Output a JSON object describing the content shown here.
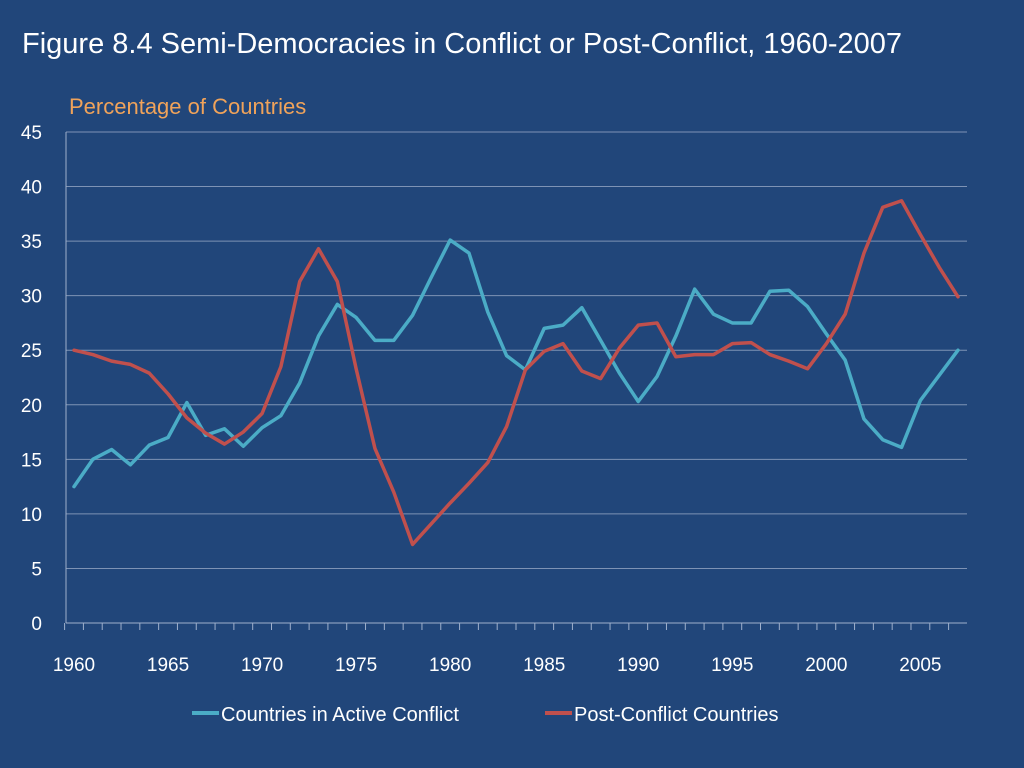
{
  "slide": {
    "title": "Figure 8.4 Semi-Democracies in Conflict or Post-Conflict, 1960-2007"
  },
  "chart_data": {
    "type": "line",
    "title": "Figure 8.4 Semi-Democracies in Conflict or Post-Conflict, 1960-2007",
    "xlabel": "",
    "ylabel": "Percentage of Countries",
    "xlim": [
      1960,
      2007
    ],
    "ylim": [
      0,
      45
    ],
    "y_ticks": [
      0,
      5,
      10,
      15,
      20,
      25,
      30,
      35,
      40,
      45
    ],
    "x_ticks": [
      1960,
      1965,
      1970,
      1975,
      1980,
      1985,
      1990,
      1995,
      2000,
      2005
    ],
    "grid": "horizontal",
    "legend_position": "bottom",
    "x": [
      1960,
      1961,
      1962,
      1963,
      1964,
      1965,
      1966,
      1967,
      1968,
      1969,
      1970,
      1971,
      1972,
      1973,
      1974,
      1975,
      1976,
      1977,
      1978,
      1979,
      1980,
      1981,
      1982,
      1983,
      1984,
      1985,
      1986,
      1987,
      1988,
      1989,
      1990,
      1991,
      1992,
      1993,
      1994,
      1995,
      1996,
      1997,
      1998,
      1999,
      2000,
      2001,
      2002,
      2003,
      2004,
      2005,
      2006,
      2007
    ],
    "series": [
      {
        "name": "Countries in Active Conflict",
        "color": "#4bacc6",
        "values": [
          12.5,
          15.0,
          15.9,
          14.5,
          16.3,
          17.0,
          20.2,
          17.2,
          17.8,
          16.2,
          17.9,
          19.0,
          22.0,
          26.3,
          29.2,
          28.0,
          25.9,
          25.9,
          28.2,
          31.7,
          35.1,
          33.9,
          28.5,
          24.5,
          23.2,
          27.0,
          27.3,
          28.9,
          25.9,
          22.9,
          20.3,
          22.6,
          26.3,
          30.6,
          28.3,
          27.5,
          27.5,
          30.4,
          30.5,
          29.0,
          26.5,
          24.1,
          18.7,
          16.8,
          16.1,
          20.4,
          22.7,
          25.0
        ]
      },
      {
        "name": "Post-Conflict Countries",
        "color": "#c0504d",
        "values": [
          25.0,
          24.6,
          24.0,
          23.7,
          22.9,
          21.0,
          18.8,
          17.4,
          16.4,
          17.5,
          19.2,
          23.5,
          31.3,
          34.3,
          31.3,
          23.3,
          16.0,
          12.0,
          7.2,
          9.1,
          11.0,
          12.8,
          14.7,
          18.0,
          23.2,
          24.9,
          25.6,
          23.1,
          22.4,
          25.2,
          27.3,
          27.5,
          24.4,
          24.6,
          24.6,
          25.6,
          25.7,
          24.6,
          24.0,
          23.3,
          25.6,
          28.3,
          33.9,
          38.1,
          38.7,
          35.6,
          32.6,
          29.9
        ]
      }
    ]
  }
}
